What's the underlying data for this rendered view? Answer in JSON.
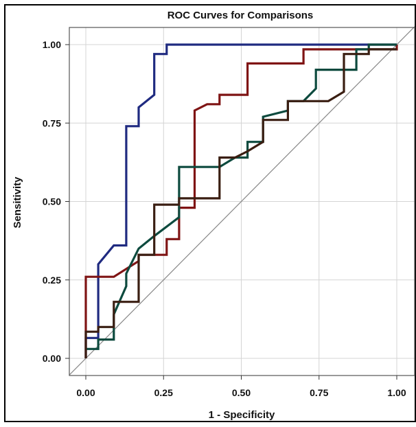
{
  "chart_data": {
    "type": "line",
    "title": "ROC Curves for Comparisons",
    "xlabel": "1 - Specificity",
    "ylabel": "Sensitivity",
    "xlim": [
      0,
      1
    ],
    "ylim": [
      0,
      1
    ],
    "xticks": [
      "0.00",
      "0.25",
      "0.50",
      "0.75",
      "1.00"
    ],
    "xtick_values": [
      0,
      0.25,
      0.5,
      0.75,
      1
    ],
    "yticks": [
      "0.00",
      "0.25",
      "0.50",
      "0.75",
      "1.00"
    ],
    "ytick_values": [
      0,
      0.25,
      0.5,
      0.75,
      1
    ],
    "grid": true,
    "reference_line": {
      "x": [
        0,
        1
      ],
      "y": [
        0,
        1
      ],
      "color": "#888888"
    },
    "series": [
      {
        "color": "#1f2a80",
        "x": [
          0,
          0,
          0.04,
          0.04,
          0.09,
          0.09,
          0.13,
          0.13,
          0.17,
          0.17,
          0.22,
          0.22,
          0.26,
          0.26,
          1.0
        ],
        "y": [
          0,
          0.065,
          0.065,
          0.3,
          0.36,
          0.36,
          0.36,
          0.74,
          0.74,
          0.8,
          0.84,
          0.97,
          0.97,
          1.0,
          1.0
        ]
      },
      {
        "color": "#7f1414",
        "x": [
          0,
          0,
          0.09,
          0.17,
          0.17,
          0.26,
          0.26,
          0.3,
          0.3,
          0.35,
          0.35,
          0.39,
          0.43,
          0.43,
          0.52,
          0.52,
          0.57,
          0.7,
          0.7,
          0.87,
          1.0,
          1.0
        ],
        "y": [
          0,
          0.26,
          0.26,
          0.31,
          0.33,
          0.33,
          0.38,
          0.38,
          0.48,
          0.48,
          0.79,
          0.81,
          0.81,
          0.84,
          0.84,
          0.94,
          0.94,
          0.94,
          0.985,
          0.985,
          0.985,
          1.0
        ]
      },
      {
        "color": "#0d4a3e",
        "x": [
          0,
          0.04,
          0.04,
          0.09,
          0.09,
          0.13,
          0.13,
          0.17,
          0.17,
          0.22,
          0.3,
          0.3,
          0.43,
          0.48,
          0.52,
          0.52,
          0.57,
          0.57,
          0.65,
          0.65,
          0.7,
          0.74,
          0.74,
          0.87,
          0.87,
          0.91,
          0.91,
          1.0
        ],
        "y": [
          0.03,
          0.03,
          0.06,
          0.06,
          0.14,
          0.23,
          0.27,
          0.35,
          0.35,
          0.39,
          0.45,
          0.61,
          0.61,
          0.64,
          0.64,
          0.69,
          0.69,
          0.77,
          0.79,
          0.82,
          0.82,
          0.86,
          0.92,
          0.92,
          0.985,
          0.985,
          1.0,
          1.0
        ]
      },
      {
        "color": "#3a1e12",
        "x": [
          0,
          0,
          0.04,
          0.04,
          0.09,
          0.09,
          0.17,
          0.17,
          0.22,
          0.22,
          0.3,
          0.3,
          0.43,
          0.43,
          0.48,
          0.52,
          0.52,
          0.57,
          0.57,
          0.65,
          0.65,
          0.7,
          0.7,
          0.78,
          0.83,
          0.83,
          0.91,
          0.91,
          1.0
        ],
        "y": [
          0,
          0.085,
          0.085,
          0.1,
          0.1,
          0.18,
          0.18,
          0.33,
          0.33,
          0.49,
          0.49,
          0.51,
          0.51,
          0.64,
          0.64,
          0.66,
          0.66,
          0.69,
          0.76,
          0.76,
          0.82,
          0.82,
          0.82,
          0.82,
          0.85,
          0.97,
          0.97,
          0.985,
          0.985
        ]
      }
    ]
  }
}
